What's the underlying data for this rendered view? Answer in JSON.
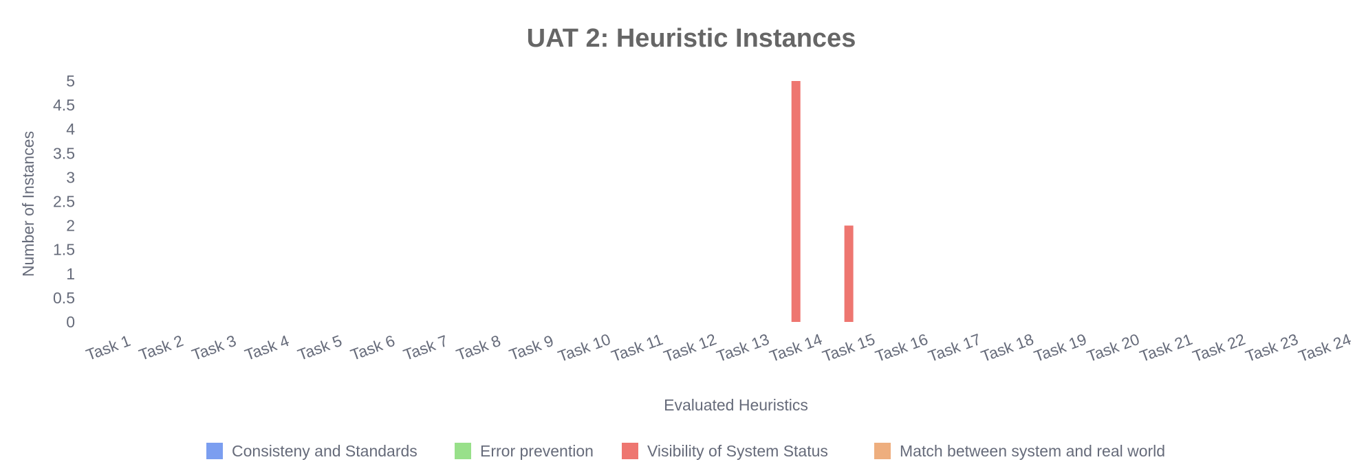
{
  "chart_data": {
    "type": "bar",
    "title": "UAT 2: Heuristic Instances",
    "xlabel": "Evaluated Heuristics",
    "ylabel": "Number of Instances",
    "ylim": [
      0,
      5
    ],
    "y_ticks": [
      "0",
      "0.5",
      "1",
      "1.5",
      "2",
      "2.5",
      "3",
      "3.5",
      "4",
      "4.5",
      "5"
    ],
    "grid": false,
    "legend_position": "bottom",
    "categories": [
      "Task 1",
      "Task 2",
      "Task 3",
      "Task 4",
      "Task 5",
      "Task 6",
      "Task 7",
      "Task 8",
      "Task 9",
      "Task 10",
      "Task 11",
      "Task 12",
      "Task 13",
      "Task 14",
      "Task 15",
      "Task 16",
      "Task 17",
      "Task 18",
      "Task 19",
      "Task 20",
      "Task 21",
      "Task 22",
      "Task 23",
      "Task 24"
    ],
    "series": [
      {
        "name": "Consisteny and Standards",
        "color": "#7b9ef0",
        "values": [
          0,
          0,
          0,
          0,
          0,
          0,
          0,
          0,
          0,
          0,
          0,
          0,
          0,
          0,
          0,
          0,
          0,
          0,
          0,
          0,
          0,
          0,
          0,
          0
        ]
      },
      {
        "name": "Error prevention",
        "color": "#98e08a",
        "values": [
          0,
          0,
          0,
          0,
          0,
          0,
          0,
          0,
          0,
          0,
          0,
          0,
          0,
          0,
          0,
          0,
          0,
          0,
          0,
          0,
          0,
          0,
          0,
          0
        ]
      },
      {
        "name": "Visibility of System Status",
        "color": "#ee7670",
        "values": [
          0,
          0,
          0,
          0,
          0,
          0,
          0,
          0,
          0,
          0,
          0,
          0,
          0,
          5,
          2,
          0,
          0,
          0,
          0,
          0,
          0,
          0,
          0,
          0
        ]
      },
      {
        "name": "Match between system and real world",
        "color": "#eeae7e",
        "values": [
          0,
          0,
          0,
          0,
          0,
          0,
          0,
          0,
          0,
          0,
          0,
          0,
          0,
          0,
          0,
          0,
          0,
          0,
          0,
          0,
          0,
          0,
          0,
          0
        ]
      }
    ]
  }
}
